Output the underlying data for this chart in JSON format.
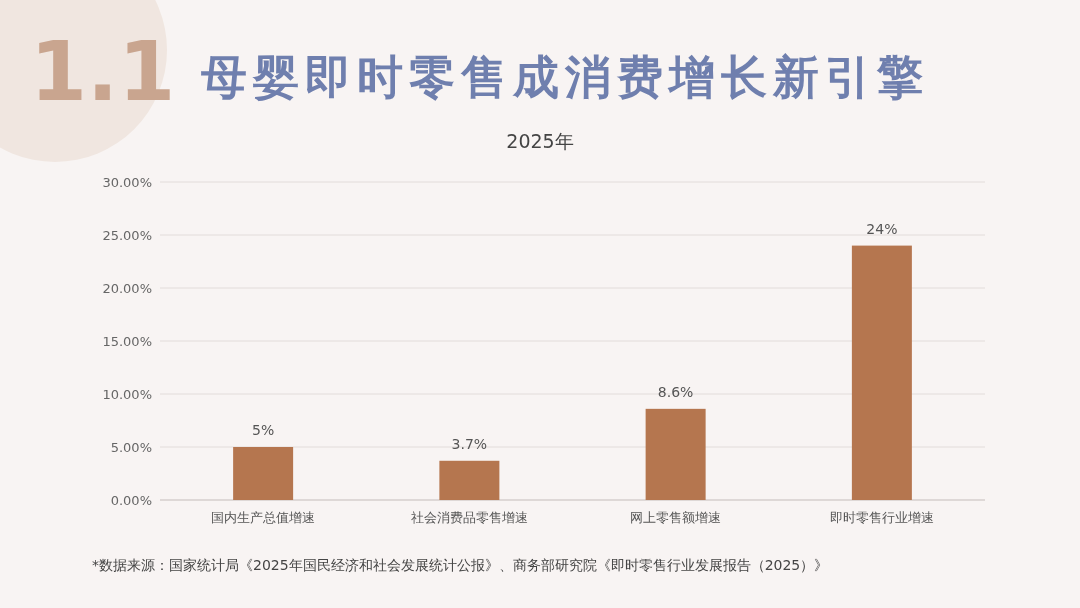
{
  "chart_data": {
    "type": "bar",
    "title": "母婴即时零售成消费增长新引擎",
    "subtitle": "2025年",
    "categories": [
      "国内生产总值增速",
      "社会消费品零售增速",
      "网上零售额增速",
      "即时零售行业增速"
    ],
    "values": [
      5,
      3.7,
      8.6,
      24
    ],
    "value_labels": [
      "5%",
      "3.7%",
      "8.6%",
      "24%"
    ],
    "color": "#b5764f",
    "ylim": [
      0,
      30
    ],
    "yticks": [
      {
        "value": 0,
        "label": "0.00%"
      },
      {
        "value": 5,
        "label": "5.00%"
      },
      {
        "value": 10,
        "label": "10.00%"
      },
      {
        "value": 15,
        "label": "15.00%"
      },
      {
        "value": 20,
        "label": "20.00%"
      },
      {
        "value": 25,
        "label": "25.00%"
      },
      {
        "value": 30,
        "label": "30.00%"
      }
    ],
    "grid": "y",
    "annotations": [
      "1.1",
      "*数据来源：国家统计局《2025年国民经济和社会发展统计公报》、商务部研究院《即时零售行业发展报告（2025）》"
    ]
  }
}
